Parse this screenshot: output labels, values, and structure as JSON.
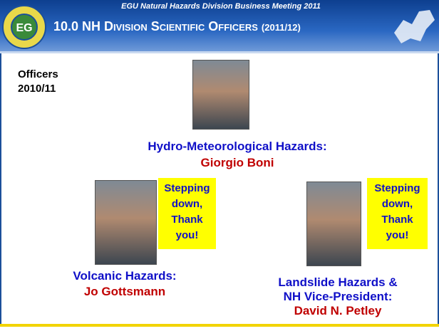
{
  "header": {
    "subtitle": "EGU Natural Hazards Division Business Meeting 2011",
    "title": "10.0 NH Division Scientific Officers",
    "title_suffix": "(2011/12)"
  },
  "side_label": [
    "Officers",
    "2010/11"
  ],
  "people": [
    {
      "role": [
        "Hydro-Meteorological Hazards:"
      ],
      "name": "Giorgio Boni"
    },
    {
      "role": [
        "Volcanic Hazards:"
      ],
      "name": "Jo Gottsmann",
      "note": [
        "Stepping",
        "down,",
        "Thank",
        "you!"
      ]
    },
    {
      "role": [
        "Landslide Hazards &",
        "NH Vice-President:"
      ],
      "name": "David N. Petley",
      "note": [
        "Stepping",
        "down,",
        "Thank",
        "you!"
      ]
    }
  ]
}
